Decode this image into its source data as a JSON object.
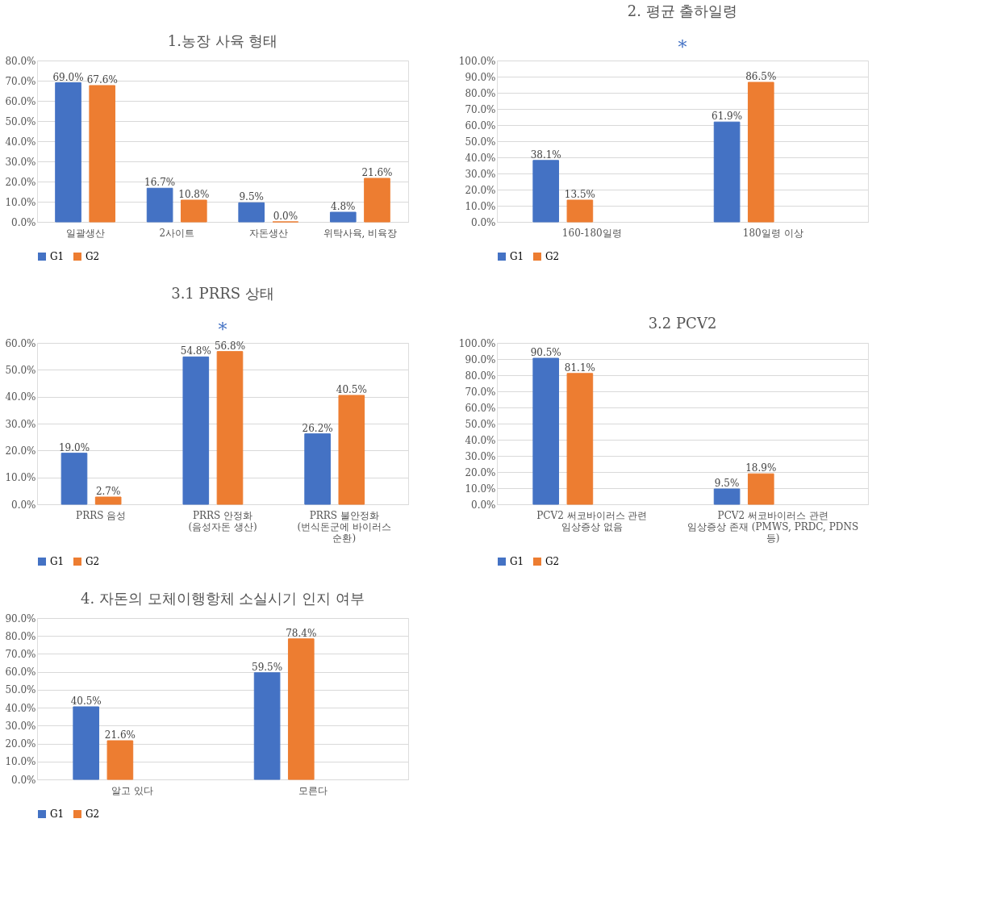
{
  "chart_data": [
    {
      "type": "bar",
      "title": "1.농장 사육 형태",
      "categories": [
        "일괄생산",
        "2사이트",
        "자돈생산",
        "위탁사육, 비육장"
      ],
      "series": [
        {
          "name": "G1",
          "color": "#4472c4",
          "values": [
            69.0,
            16.7,
            9.5,
            4.8
          ],
          "value_labels": [
            "69.0%",
            "16.7%",
            "9.5%",
            "4.8%"
          ]
        },
        {
          "name": "G2",
          "color": "#ed7d31",
          "values": [
            67.6,
            10.8,
            0.0,
            21.6
          ],
          "value_labels": [
            "67.6%",
            "10.8%",
            "0.0%",
            "21.6%"
          ]
        }
      ],
      "ylim": [
        0,
        80
      ],
      "yticks": [
        {
          "value": 0,
          "label": "0.0%"
        },
        {
          "value": 10,
          "label": "10.0%"
        },
        {
          "value": 20,
          "label": "20.0%"
        },
        {
          "value": 30,
          "label": "30.0%"
        },
        {
          "value": 40,
          "label": "40.0%"
        },
        {
          "value": 50,
          "label": "50.0%"
        },
        {
          "value": 60,
          "label": "60.0%"
        },
        {
          "value": 70,
          "label": "70.0%"
        },
        {
          "value": 80,
          "label": "80.0%"
        }
      ],
      "grid": "y",
      "legend": "bottom"
    },
    {
      "type": "bar",
      "title": "2. 평균 출하일령",
      "categories": [
        "160-180일령",
        "180일령 이상"
      ],
      "series": [
        {
          "name": "G1",
          "color": "#4472c4",
          "values": [
            38.1,
            61.9
          ],
          "value_labels": [
            "38.1%",
            "61.9%"
          ]
        },
        {
          "name": "G2",
          "color": "#ed7d31",
          "values": [
            13.5,
            86.5
          ],
          "value_labels": [
            "13.5%",
            "86.5%"
          ]
        }
      ],
      "ylim": [
        0,
        100
      ],
      "yticks": [
        {
          "value": 0,
          "label": "0.0%"
        },
        {
          "value": 10,
          "label": "10.0%"
        },
        {
          "value": 20,
          "label": "20.0%"
        },
        {
          "value": 30,
          "label": "30.0%"
        },
        {
          "value": 40,
          "label": "40.0%"
        },
        {
          "value": 50,
          "label": "50.0%"
        },
        {
          "value": 60,
          "label": "60.0%"
        },
        {
          "value": 70,
          "label": "70.0%"
        },
        {
          "value": 80,
          "label": "80.0%"
        },
        {
          "value": 90,
          "label": "90.0%"
        },
        {
          "value": 100,
          "label": "100.0%"
        }
      ],
      "grid": "y",
      "legend": "bottom",
      "annotations": [
        "*"
      ]
    },
    {
      "type": "bar",
      "title": "3.1 PRRS 상태",
      "categories": [
        "PRRS 음성",
        "PRRS 안정화\n(음성자돈 생산)",
        "PRRS 불안정화\n(번식돈군에 바이러스\n순환)"
      ],
      "series": [
        {
          "name": "G1",
          "color": "#4472c4",
          "values": [
            19.0,
            54.8,
            26.2
          ],
          "value_labels": [
            "19.0%",
            "54.8%",
            "26.2%"
          ]
        },
        {
          "name": "G2",
          "color": "#ed7d31",
          "values": [
            2.7,
            56.8,
            40.5
          ],
          "value_labels": [
            "2.7%",
            "56.8%",
            "40.5%"
          ]
        }
      ],
      "ylim": [
        0,
        60
      ],
      "yticks": [
        {
          "value": 0,
          "label": "0.0%"
        },
        {
          "value": 10,
          "label": "10.0%"
        },
        {
          "value": 20,
          "label": "20.0%"
        },
        {
          "value": 30,
          "label": "30.0%"
        },
        {
          "value": 40,
          "label": "40.0%"
        },
        {
          "value": 50,
          "label": "50.0%"
        },
        {
          "value": 60,
          "label": "60.0%"
        }
      ],
      "grid": "y",
      "legend": "bottom",
      "annotations": [
        "*"
      ]
    },
    {
      "type": "bar",
      "title": "3.2 PCV2",
      "categories": [
        "PCV2 써코바이러스 관련\n임상증상 없음",
        "PCV2 써코바이러스 관련\n임상증상 존재 (PMWS, PRDC, PDNS\n등)"
      ],
      "series": [
        {
          "name": "G1",
          "color": "#4472c4",
          "values": [
            90.5,
            9.5
          ],
          "value_labels": [
            "90.5%",
            "9.5%"
          ]
        },
        {
          "name": "G2",
          "color": "#ed7d31",
          "values": [
            81.1,
            18.9
          ],
          "value_labels": [
            "81.1%",
            "18.9%"
          ]
        }
      ],
      "ylim": [
        0,
        100
      ],
      "yticks": [
        {
          "value": 0,
          "label": "0.0%"
        },
        {
          "value": 10,
          "label": "10.0%"
        },
        {
          "value": 20,
          "label": "20.0%"
        },
        {
          "value": 30,
          "label": "30.0%"
        },
        {
          "value": 40,
          "label": "40.0%"
        },
        {
          "value": 50,
          "label": "50.0%"
        },
        {
          "value": 60,
          "label": "60.0%"
        },
        {
          "value": 70,
          "label": "70.0%"
        },
        {
          "value": 80,
          "label": "80.0%"
        },
        {
          "value": 90,
          "label": "90.0%"
        },
        {
          "value": 100,
          "label": "100.0%"
        }
      ],
      "grid": "y",
      "legend": "bottom"
    },
    {
      "type": "bar",
      "title": "4. 자돈의 모체이행항체 소실시기 인지 여부",
      "categories": [
        "알고 있다",
        "모른다"
      ],
      "series": [
        {
          "name": "G1",
          "color": "#4472c4",
          "values": [
            40.5,
            59.5
          ],
          "value_labels": [
            "40.5%",
            "59.5%"
          ]
        },
        {
          "name": "G2",
          "color": "#ed7d31",
          "values": [
            21.6,
            78.4
          ],
          "value_labels": [
            "21.6%",
            "78.4%"
          ]
        }
      ],
      "ylim": [
        0,
        90
      ],
      "yticks": [
        {
          "value": 0,
          "label": "0.0%"
        },
        {
          "value": 10,
          "label": "10.0%"
        },
        {
          "value": 20,
          "label": "20.0%"
        },
        {
          "value": 30,
          "label": "30.0%"
        },
        {
          "value": 40,
          "label": "40.0%"
        },
        {
          "value": 50,
          "label": "50.0%"
        },
        {
          "value": 60,
          "label": "60.0%"
        },
        {
          "value": 70,
          "label": "70.0%"
        },
        {
          "value": 80,
          "label": "80.0%"
        },
        {
          "value": 90,
          "label": "90.0%"
        }
      ],
      "grid": "y",
      "legend": "bottom"
    }
  ]
}
